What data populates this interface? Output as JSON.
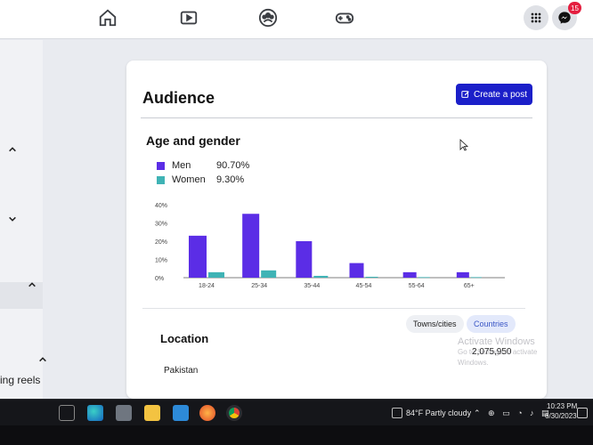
{
  "topnav": {
    "icons": [
      "home-icon",
      "video-icon",
      "groups-icon",
      "gaming-icon",
      "menu-grid-icon",
      "messenger-icon"
    ],
    "messenger_badge": "15"
  },
  "sidebar": {
    "partial_text": "ing reels"
  },
  "card": {
    "title": "Audience",
    "create_post_label": "Create a post"
  },
  "age_gender": {
    "title": "Age and gender",
    "legend": [
      {
        "label": "Men",
        "value": "90.70%",
        "color": "#5b2de6"
      },
      {
        "label": "Women",
        "value": "9.30%",
        "color": "#3fb3b5"
      }
    ]
  },
  "chart_data": {
    "type": "bar",
    "categories": [
      "18-24",
      "25-34",
      "35-44",
      "45-54",
      "55-64",
      "65+"
    ],
    "series": [
      {
        "name": "Men",
        "values": [
          23,
          35,
          20,
          8,
          3,
          3
        ],
        "color": "#5b2de6"
      },
      {
        "name": "Women",
        "values": [
          3,
          4,
          1,
          0.5,
          0.3,
          0.3
        ],
        "color": "#3fb3b5"
      }
    ],
    "yticks": [
      "0%",
      "10%",
      "20%",
      "30%",
      "40%"
    ],
    "ylim": [
      0,
      40
    ],
    "grid": false
  },
  "location": {
    "title": "Location",
    "tabs": [
      "Towns/cities",
      "Countries"
    ],
    "rows": [
      {
        "name": "Pakistan",
        "value": "2,075,950"
      }
    ]
  },
  "watermark": {
    "line1": "Activate Windows",
    "line2": "Go to Settings to activate Windows."
  },
  "taskbar": {
    "weather": "84°F  Partly cloudy",
    "time": "10:23 PM",
    "date": "6/30/2023"
  }
}
